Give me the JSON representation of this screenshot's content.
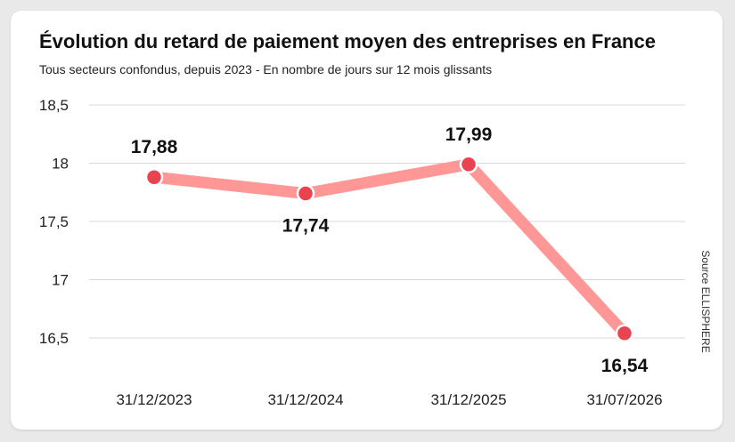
{
  "colors": {
    "line": "#ff9797",
    "point": "#e8434f",
    "point_stroke": "#ffffff",
    "grid": "#d8d8d8"
  },
  "chart_data": {
    "type": "line",
    "title": "Évolution du retard de paiement moyen des entreprises en France",
    "subtitle": "Tous secteurs confondus, depuis 2023 - En nombre de jours sur 12 mois glissants",
    "source": "Source ELLISPHERE",
    "categories": [
      "31/12/2023",
      "31/12/2024",
      "31/12/2025",
      "31/07/2026"
    ],
    "series": [
      {
        "values": [
          17.88,
          17.74,
          17.99,
          16.54
        ],
        "labels": [
          "17,88",
          "17,74",
          "17,99",
          "16,54"
        ]
      }
    ],
    "yticks": [
      18.5,
      18,
      17.5,
      17,
      16.5
    ],
    "ytick_labels": [
      "18,5",
      "18",
      "17,5",
      "17",
      "16,5"
    ],
    "ylim": [
      16.5,
      18.5
    ],
    "grid": true,
    "legend": false
  }
}
